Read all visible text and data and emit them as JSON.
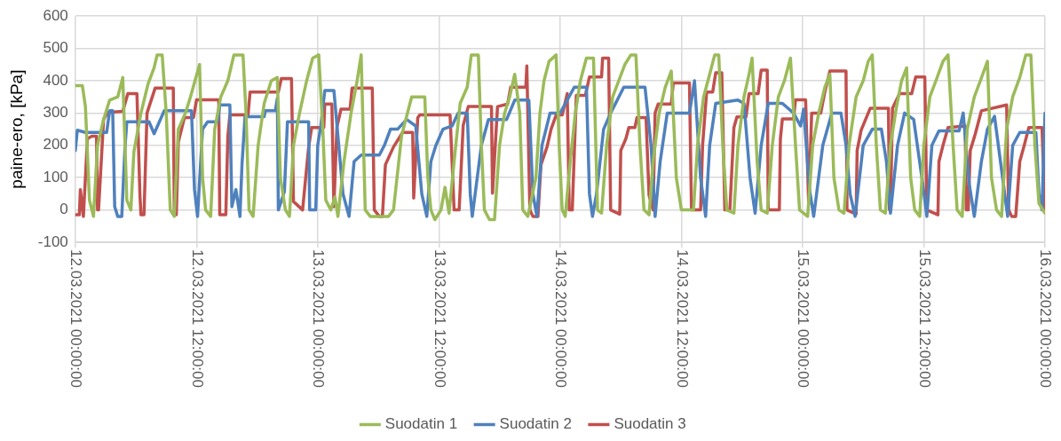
{
  "chart_data": {
    "type": "line",
    "ylabel": "paine-ero, [kPa]",
    "xlim": [
      "2021-03-12T00:00",
      "2021-03-16T00:00"
    ],
    "ylim": [
      -100,
      600
    ],
    "yticks": [
      -100,
      0,
      100,
      200,
      300,
      400,
      500,
      600
    ],
    "xticks": [
      {
        "value": "2021-03-12T00:00",
        "label": "12.03.2021 00:00:00"
      },
      {
        "value": "2021-03-12T12:00",
        "label": "12.03.2021 12:00:00"
      },
      {
        "value": "2021-03-13T00:00",
        "label": "13.03.2021 00:00:00"
      },
      {
        "value": "2021-03-13T12:00",
        "label": "13.03.2021 12:00:00"
      },
      {
        "value": "2021-03-14T00:00",
        "label": "14.03.2021 00:00:00"
      },
      {
        "value": "2021-03-14T12:00",
        "label": "14.03.2021 12:00:00"
      },
      {
        "value": "2021-03-15T00:00",
        "label": "15.03.2021 00:00:00"
      },
      {
        "value": "2021-03-15T12:00",
        "label": "15.03.2021 12:00:00"
      },
      {
        "value": "2021-03-16T00:00",
        "label": "16.03.2021 00:00:00"
      }
    ],
    "grid": true,
    "legend": "bottom",
    "marker": "none",
    "line_style": "solid",
    "series": [
      {
        "name": "Suodatin 1",
        "color": "#9bbb59",
        "x": [
          "2021-03-12T00:00",
          "2021-03-12T00:42",
          "2021-03-12T01:00",
          "2021-03-12T01:24",
          "2021-03-12T01:48",
          "2021-03-12T02:12",
          "2021-03-12T02:48",
          "2021-03-12T03:24",
          "2021-03-12T04:12",
          "2021-03-12T04:42",
          "2021-03-12T05:06",
          "2021-03-12T05:30",
          "2021-03-12T05:48",
          "2021-03-12T06:30",
          "2021-03-12T07:12",
          "2021-03-12T07:48",
          "2021-03-12T08:06",
          "2021-03-12T08:36",
          "2021-03-12T09:00",
          "2021-03-12T09:24",
          "2021-03-12T09:48",
          "2021-03-12T10:12",
          "2021-03-12T10:54",
          "2021-03-12T11:24",
          "2021-03-12T12:18",
          "2021-03-12T12:36",
          "2021-03-12T12:54",
          "2021-03-12T13:24",
          "2021-03-12T13:48",
          "2021-03-12T14:24",
          "2021-03-12T15:06",
          "2021-03-12T15:42",
          "2021-03-12T16:36",
          "2021-03-12T16:54",
          "2021-03-12T17:12",
          "2021-03-12T17:36",
          "2021-03-12T18:06",
          "2021-03-12T18:42",
          "2021-03-12T19:24",
          "2021-03-12T20:00",
          "2021-03-12T20:18",
          "2021-03-12T20:48",
          "2021-03-12T21:12",
          "2021-03-12T21:36",
          "2021-03-12T22:12",
          "2021-03-12T22:54",
          "2021-03-12T23:30",
          "2021-03-13T00:06",
          "2021-03-13T00:30",
          "2021-03-13T00:48",
          "2021-03-13T01:18",
          "2021-03-13T01:42",
          "2021-03-13T02:00",
          "2021-03-13T02:36",
          "2021-03-13T03:18",
          "2021-03-13T03:54",
          "2021-03-13T04:18",
          "2021-03-13T04:42",
          "2021-03-13T05:12",
          "2021-03-13T07:00",
          "2021-03-13T07:30",
          "2021-03-13T08:18",
          "2021-03-13T09:18",
          "2021-03-13T10:36",
          "2021-03-13T10:54",
          "2021-03-13T11:12",
          "2021-03-13T11:36",
          "2021-03-13T12:12",
          "2021-03-13T12:36",
          "2021-03-13T13:00",
          "2021-03-13T13:30",
          "2021-03-13T14:06",
          "2021-03-13T14:48",
          "2021-03-13T15:12",
          "2021-03-13T15:54",
          "2021-03-13T16:12",
          "2021-03-13T16:30",
          "2021-03-13T17:00",
          "2021-03-13T17:30",
          "2021-03-13T18:00",
          "2021-03-13T18:30",
          "2021-03-13T19:00",
          "2021-03-13T19:30",
          "2021-03-13T20:00",
          "2021-03-13T20:18",
          "2021-03-13T20:48",
          "2021-03-13T21:36",
          "2021-03-13T22:00",
          "2021-03-13T22:24",
          "2021-03-13T22:54",
          "2021-03-13T23:36",
          "2021-03-13T23:54",
          "2021-03-14T00:12",
          "2021-03-14T00:30",
          "2021-03-14T01:00",
          "2021-03-14T01:30",
          "2021-03-14T02:00",
          "2021-03-14T02:36",
          "2021-03-14T03:18",
          "2021-03-14T03:42",
          "2021-03-14T04:06",
          "2021-03-14T04:36",
          "2021-03-14T05:12",
          "2021-03-14T05:48",
          "2021-03-14T06:24",
          "2021-03-14T07:00",
          "2021-03-14T07:30",
          "2021-03-14T07:54",
          "2021-03-14T08:18",
          "2021-03-14T08:48",
          "2021-03-14T09:12",
          "2021-03-14T09:48",
          "2021-03-14T10:24",
          "2021-03-14T11:00",
          "2021-03-14T11:30",
          "2021-03-14T12:00",
          "2021-03-14T13:12",
          "2021-03-14T13:36",
          "2021-03-14T14:12",
          "2021-03-14T14:48",
          "2021-03-14T15:18",
          "2021-03-14T15:42",
          "2021-03-14T16:06",
          "2021-03-14T16:30",
          "2021-03-14T17:12",
          "2021-03-14T17:36",
          "2021-03-14T18:12",
          "2021-03-14T18:42",
          "2021-03-14T19:00",
          "2021-03-14T19:30",
          "2021-03-14T19:54",
          "2021-03-14T20:30",
          "2021-03-14T21:00",
          "2021-03-14T21:36",
          "2021-03-14T22:12",
          "2021-03-14T22:48",
          "2021-03-14T23:18",
          "2021-03-14T23:42",
          "2021-03-15T00:30",
          "2021-03-15T01:00",
          "2021-03-15T01:36",
          "2021-03-15T02:12",
          "2021-03-15T02:42",
          "2021-03-15T03:06",
          "2021-03-15T03:36",
          "2021-03-15T04:06",
          "2021-03-15T04:36",
          "2021-03-15T05:18",
          "2021-03-15T06:00",
          "2021-03-15T06:30",
          "2021-03-15T06:54",
          "2021-03-15T07:18",
          "2021-03-15T07:42",
          "2021-03-15T08:12",
          "2021-03-15T08:42",
          "2021-03-15T09:18",
          "2021-03-15T09:48",
          "2021-03-15T10:18",
          "2021-03-15T10:42",
          "2021-03-15T11:06",
          "2021-03-15T11:36",
          "2021-03-15T12:00",
          "2021-03-15T12:36",
          "2021-03-15T13:12",
          "2021-03-15T13:54",
          "2021-03-15T14:24",
          "2021-03-15T14:54",
          "2021-03-15T15:18",
          "2021-03-15T15:48",
          "2021-03-15T16:18",
          "2021-03-15T17:00",
          "2021-03-15T17:36",
          "2021-03-15T18:18",
          "2021-03-15T18:42",
          "2021-03-15T19:12",
          "2021-03-15T19:42",
          "2021-03-15T20:12",
          "2021-03-15T20:48",
          "2021-03-15T21:30",
          "2021-03-15T22:06",
          "2021-03-15T22:36",
          "2021-03-15T23:00",
          "2021-03-15T23:24",
          "2021-03-16T00:00"
        ],
        "values": [
          385,
          385,
          320,
          30,
          -20,
          200,
          280,
          340,
          350,
          410,
          30,
          0,
          180,
          300,
          390,
          440,
          480,
          480,
          300,
          0,
          -20,
          250,
          300,
          350,
          450,
          100,
          0,
          -20,
          250,
          350,
          400,
          480,
          480,
          300,
          0,
          -20,
          200,
          330,
          400,
          410,
          100,
          0,
          -20,
          200,
          300,
          400,
          470,
          480,
          250,
          30,
          0,
          40,
          -20,
          150,
          300,
          400,
          480,
          0,
          -20,
          -20,
          0,
          230,
          350,
          350,
          100,
          0,
          -30,
          0,
          70,
          -10,
          150,
          330,
          380,
          480,
          480,
          200,
          0,
          -30,
          -30,
          200,
          300,
          350,
          420,
          300,
          0,
          -20,
          100,
          300,
          400,
          460,
          480,
          200,
          0,
          -20,
          150,
          300,
          400,
          470,
          470,
          0,
          -10,
          200,
          350,
          400,
          450,
          480,
          480,
          200,
          0,
          -15,
          150,
          300,
          380,
          430,
          100,
          0,
          0,
          200,
          350,
          420,
          480,
          480,
          200,
          0,
          -10,
          200,
          350,
          420,
          470,
          150,
          0,
          -10,
          200,
          350,
          400,
          470,
          200,
          0,
          -20,
          200,
          300,
          380,
          420,
          100,
          0,
          -10,
          200,
          350,
          400,
          460,
          480,
          200,
          0,
          -10,
          200,
          320,
          400,
          440,
          100,
          0,
          -20,
          200,
          350,
          400,
          460,
          480,
          200,
          0,
          -20,
          250,
          350,
          400,
          460,
          100,
          0,
          -20,
          250,
          350,
          410,
          480,
          480,
          200,
          20,
          -10
        ]
      },
      {
        "name": "Suodatin 2",
        "color": "#4f81bd",
        "x": [
          "2021-03-12T00:00",
          "2021-03-12T00:12",
          "2021-03-12T01:00",
          "2021-03-12T03:06",
          "2021-03-12T03:24",
          "2021-03-12T03:42",
          "2021-03-12T03:54",
          "2021-03-12T04:12",
          "2021-03-12T04:36",
          "2021-03-12T04:54",
          "2021-03-12T05:06",
          "2021-03-12T07:18",
          "2021-03-12T07:48",
          "2021-03-12T08:48",
          "2021-03-12T11:30",
          "2021-03-12T11:48",
          "2021-03-12T12:06",
          "2021-03-12T12:36",
          "2021-03-12T13:06",
          "2021-03-12T14:06",
          "2021-03-12T14:18",
          "2021-03-12T15:18",
          "2021-03-12T15:30",
          "2021-03-12T15:54",
          "2021-03-12T16:18",
          "2021-03-12T16:30",
          "2021-03-12T16:48",
          "2021-03-12T18:42",
          "2021-03-12T18:48",
          "2021-03-12T19:48",
          "2021-03-12T20:00",
          "2021-03-12T20:06",
          "2021-03-12T20:42",
          "2021-03-12T21:00",
          "2021-03-12T23:06",
          "2021-03-12T23:12",
          "2021-03-12T23:48",
          "2021-03-13T00:00",
          "2021-03-13T00:18",
          "2021-03-13T00:42",
          "2021-03-13T01:36",
          "2021-03-13T02:30",
          "2021-03-13T03:06",
          "2021-03-13T03:36",
          "2021-03-13T04:18",
          "2021-03-13T06:06",
          "2021-03-13T06:36",
          "2021-03-13T07:12",
          "2021-03-13T07:54",
          "2021-03-13T08:48",
          "2021-03-13T09:42",
          "2021-03-13T10:18",
          "2021-03-13T10:48",
          "2021-03-13T11:12",
          "2021-03-13T11:42",
          "2021-03-13T12:24",
          "2021-03-13T13:18",
          "2021-03-13T13:54",
          "2021-03-13T14:48",
          "2021-03-13T15:06",
          "2021-03-13T15:18",
          "2021-03-13T16:12",
          "2021-03-13T16:54",
          "2021-03-13T18:42",
          "2021-03-13T19:30",
          "2021-03-13T20:54",
          "2021-03-13T21:18",
          "2021-03-13T21:42",
          "2021-03-13T22:12",
          "2021-03-13T23:00",
          "2021-03-14T00:00",
          "2021-03-14T01:24",
          "2021-03-14T02:36",
          "2021-03-14T02:54",
          "2021-03-14T03:12",
          "2021-03-14T03:36",
          "2021-03-14T04:18",
          "2021-03-14T05:00",
          "2021-03-14T06:18",
          "2021-03-14T08:24",
          "2021-03-14T09:00",
          "2021-03-14T09:24",
          "2021-03-14T09:54",
          "2021-03-14T10:36",
          "2021-03-14T12:48",
          "2021-03-14T13:18",
          "2021-03-14T13:54",
          "2021-03-14T14:24",
          "2021-03-14T14:48",
          "2021-03-14T15:24",
          "2021-03-14T17:36",
          "2021-03-14T18:12",
          "2021-03-14T18:48",
          "2021-03-14T19:18",
          "2021-03-14T19:54",
          "2021-03-14T20:36",
          "2021-03-14T22:00",
          "2021-03-14T23:06",
          "2021-03-14T23:48",
          "2021-03-15T00:06",
          "2021-03-15T00:42",
          "2021-03-15T01:06",
          "2021-03-15T02:00",
          "2021-03-15T02:54",
          "2021-03-15T03:48",
          "2021-03-15T04:18",
          "2021-03-15T04:42",
          "2021-03-15T05:12",
          "2021-03-15T06:00",
          "2021-03-15T06:54",
          "2021-03-15T07:48",
          "2021-03-15T08:18",
          "2021-03-15T08:42",
          "2021-03-15T09:24",
          "2021-03-15T10:06",
          "2021-03-15T11:00",
          "2021-03-15T11:54",
          "2021-03-15T12:18",
          "2021-03-15T12:48",
          "2021-03-15T13:30",
          "2021-03-15T15:30",
          "2021-03-15T15:54",
          "2021-03-15T16:30",
          "2021-03-15T17:00",
          "2021-03-15T17:42",
          "2021-03-15T18:18",
          "2021-03-15T19:00",
          "2021-03-15T19:48",
          "2021-03-15T20:18",
          "2021-03-15T20:48",
          "2021-03-15T21:30",
          "2021-03-15T23:06",
          "2021-03-15T23:24",
          "2021-03-15T23:42",
          "2021-03-16T00:00"
        ],
        "values": [
          184,
          247,
          240,
          240,
          307,
          307,
          10,
          -20,
          -20,
          184,
          273,
          273,
          236,
          307,
          307,
          63,
          -20,
          250,
          273,
          273,
          325,
          325,
          10,
          63,
          -20,
          140,
          289,
          289,
          307,
          307,
          346,
          0,
          57,
          273,
          273,
          0,
          0,
          200,
          260,
          370,
          370,
          50,
          -20,
          150,
          170,
          170,
          200,
          250,
          250,
          280,
          260,
          50,
          -20,
          150,
          200,
          250,
          260,
          300,
          300,
          50,
          -20,
          200,
          280,
          280,
          340,
          340,
          50,
          -20,
          200,
          300,
          300,
          380,
          380,
          50,
          -20,
          50,
          250,
          300,
          380,
          380,
          200,
          -20,
          150,
          300,
          300,
          400,
          100,
          -20,
          200,
          330,
          340,
          330,
          100,
          -10,
          200,
          330,
          330,
          300,
          260,
          312,
          60,
          -20,
          200,
          300,
          300,
          200,
          50,
          -20,
          200,
          250,
          250,
          150,
          -10,
          200,
          300,
          280,
          80,
          -20,
          200,
          245,
          245,
          300,
          80,
          -20,
          150,
          250,
          290,
          100,
          -20,
          200,
          240,
          240,
          50,
          0,
          300
        ]
      },
      {
        "name": "Suodatin 3",
        "color": "#c0504d",
        "x": [
          "2021-03-12T00:00",
          "2021-03-12T00:24",
          "2021-03-12T00:30",
          "2021-03-12T00:48",
          "2021-03-12T01:12",
          "2021-03-12T01:36",
          "2021-03-12T02:06",
          "2021-03-12T02:12",
          "2021-03-12T02:18",
          "2021-03-12T02:48",
          "2021-03-12T03:12",
          "2021-03-12T04:42",
          "2021-03-12T05:12",
          "2021-03-12T06:06",
          "2021-03-12T06:24",
          "2021-03-12T06:30",
          "2021-03-12T06:48",
          "2021-03-12T07:06",
          "2021-03-12T07:54",
          "2021-03-12T09:42",
          "2021-03-12T09:48",
          "2021-03-12T10:00",
          "2021-03-12T10:12",
          "2021-03-12T10:48",
          "2021-03-12T11:42",
          "2021-03-12T12:00",
          "2021-03-12T14:12",
          "2021-03-12T14:18",
          "2021-03-12T14:54",
          "2021-03-12T15:06",
          "2021-03-12T15:18",
          "2021-03-12T17:06",
          "2021-03-12T17:18",
          "2021-03-12T20:06",
          "2021-03-12T20:24",
          "2021-03-12T21:24",
          "2021-03-12T21:36",
          "2021-03-12T22:30",
          "2021-03-12T23:06",
          "2021-03-12T23:24",
          "2021-03-13T00:36",
          "2021-03-13T00:42",
          "2021-03-13T01:24",
          "2021-03-13T01:36",
          "2021-03-13T01:54",
          "2021-03-13T02:18",
          "2021-03-13T03:12",
          "2021-03-13T03:24",
          "2021-03-13T05:24",
          "2021-03-13T05:36",
          "2021-03-13T06:06",
          "2021-03-13T06:24",
          "2021-03-13T06:42",
          "2021-03-13T07:30",
          "2021-03-13T08:24",
          "2021-03-13T09:24",
          "2021-03-13T09:30",
          "2021-03-13T09:54",
          "2021-03-13T10:06",
          "2021-03-13T13:06",
          "2021-03-13T13:30",
          "2021-03-13T14:00",
          "2021-03-13T14:24",
          "2021-03-13T14:54",
          "2021-03-13T17:12",
          "2021-03-13T17:18",
          "2021-03-13T17:48",
          "2021-03-13T18:48",
          "2021-03-13T19:06",
          "2021-03-13T20:36",
          "2021-03-13T20:42",
          "2021-03-13T21:00",
          "2021-03-13T21:18",
          "2021-03-13T21:48",
          "2021-03-13T22:06",
          "2021-03-13T22:42",
          "2021-03-13T23:06",
          "2021-03-13T23:36",
          "2021-03-14T00:12",
          "2021-03-14T00:42",
          "2021-03-14T00:54",
          "2021-03-14T01:12",
          "2021-03-14T01:36",
          "2021-03-14T02:30",
          "2021-03-14T02:54",
          "2021-03-14T04:06",
          "2021-03-14T04:12",
          "2021-03-14T04:48",
          "2021-03-14T05:00",
          "2021-03-14T05:54",
          "2021-03-14T06:00",
          "2021-03-14T06:30",
          "2021-03-14T06:48",
          "2021-03-14T07:24",
          "2021-03-14T07:36",
          "2021-03-14T08:30",
          "2021-03-14T08:48",
          "2021-03-14T09:12",
          "2021-03-14T09:24",
          "2021-03-14T09:42",
          "2021-03-14T11:00",
          "2021-03-14T11:12",
          "2021-03-14T12:48",
          "2021-03-14T13:00",
          "2021-03-14T13:54",
          "2021-03-14T14:06",
          "2021-03-14T14:30",
          "2021-03-14T15:06",
          "2021-03-14T15:24",
          "2021-03-14T16:00",
          "2021-03-14T16:18",
          "2021-03-14T16:48",
          "2021-03-14T17:12",
          "2021-03-14T17:30",
          "2021-03-14T18:24",
          "2021-03-14T18:42",
          "2021-03-14T19:36",
          "2021-03-14T19:54",
          "2021-03-14T20:30",
          "2021-03-14T20:36",
          "2021-03-14T21:42",
          "2021-03-14T21:48",
          "2021-03-14T22:00",
          "2021-03-14T23:06",
          "2021-03-14T23:18",
          "2021-03-15T00:18",
          "2021-03-15T00:36",
          "2021-03-15T00:54",
          "2021-03-15T01:48",
          "2021-03-15T02:12",
          "2021-03-15T02:42",
          "2021-03-15T04:18",
          "2021-03-15T04:24",
          "2021-03-15T05:18",
          "2021-03-15T05:24",
          "2021-03-15T05:48",
          "2021-03-15T06:42",
          "2021-03-15T08:30",
          "2021-03-15T08:36",
          "2021-03-15T08:42",
          "2021-03-15T08:54",
          "2021-03-15T09:36",
          "2021-03-15T10:48",
          "2021-03-15T11:12",
          "2021-03-15T12:06",
          "2021-03-15T12:18",
          "2021-03-15T13:24",
          "2021-03-15T13:30",
          "2021-03-15T13:54",
          "2021-03-15T14:24",
          "2021-03-15T16:06",
          "2021-03-15T16:12",
          "2021-03-15T16:24",
          "2021-03-15T16:36",
          "2021-03-15T17:06",
          "2021-03-15T17:42",
          "2021-03-15T20:12",
          "2021-03-15T20:24",
          "2021-03-15T20:42",
          "2021-03-15T21:06",
          "2021-03-15T21:30",
          "2021-03-15T21:54",
          "2021-03-15T22:24",
          "2021-03-15T23:42",
          "2021-03-16T00:00"
        ],
        "values": [
          -15,
          -15,
          63,
          -20,
          220,
          228,
          228,
          0,
          0,
          280,
          302,
          305,
          360,
          360,
          45,
          -15,
          -15,
          300,
          377,
          377,
          -15,
          -15,
          210,
          286,
          286,
          341,
          341,
          -15,
          -15,
          228,
          294,
          294,
          365,
          365,
          407,
          407,
          26,
          0,
          195,
          255,
          255,
          328,
          328,
          10,
          257,
          312,
          312,
          377,
          377,
          0,
          -20,
          -20,
          140,
          195,
          240,
          240,
          37,
          285,
          294,
          294,
          0,
          0,
          262,
          320,
          320,
          52,
          320,
          328,
          380,
          380,
          446,
          0,
          -20,
          -20,
          140,
          195,
          250,
          294,
          294,
          360,
          0,
          0,
          355,
          355,
          412,
          412,
          470,
          470,
          0,
          -13,
          184,
          220,
          255,
          255,
          286,
          286,
          45,
          0,
          300,
          328,
          328,
          393,
          393,
          0,
          0,
          200,
          365,
          365,
          425,
          425,
          0,
          0,
          255,
          288,
          288,
          360,
          360,
          433,
          433,
          0,
          0,
          220,
          282,
          282,
          341,
          341,
          18,
          300,
          300,
          365,
          430,
          430,
          0,
          -13,
          184,
          247,
          315,
          315,
          0,
          0,
          315,
          360,
          360,
          412,
          412,
          0,
          -15,
          150,
          200,
          255,
          260,
          0,
          0,
          184,
          236,
          307,
          325,
          0,
          -20,
          -20,
          150,
          195,
          255,
          255,
          0
        ]
      }
    ]
  }
}
